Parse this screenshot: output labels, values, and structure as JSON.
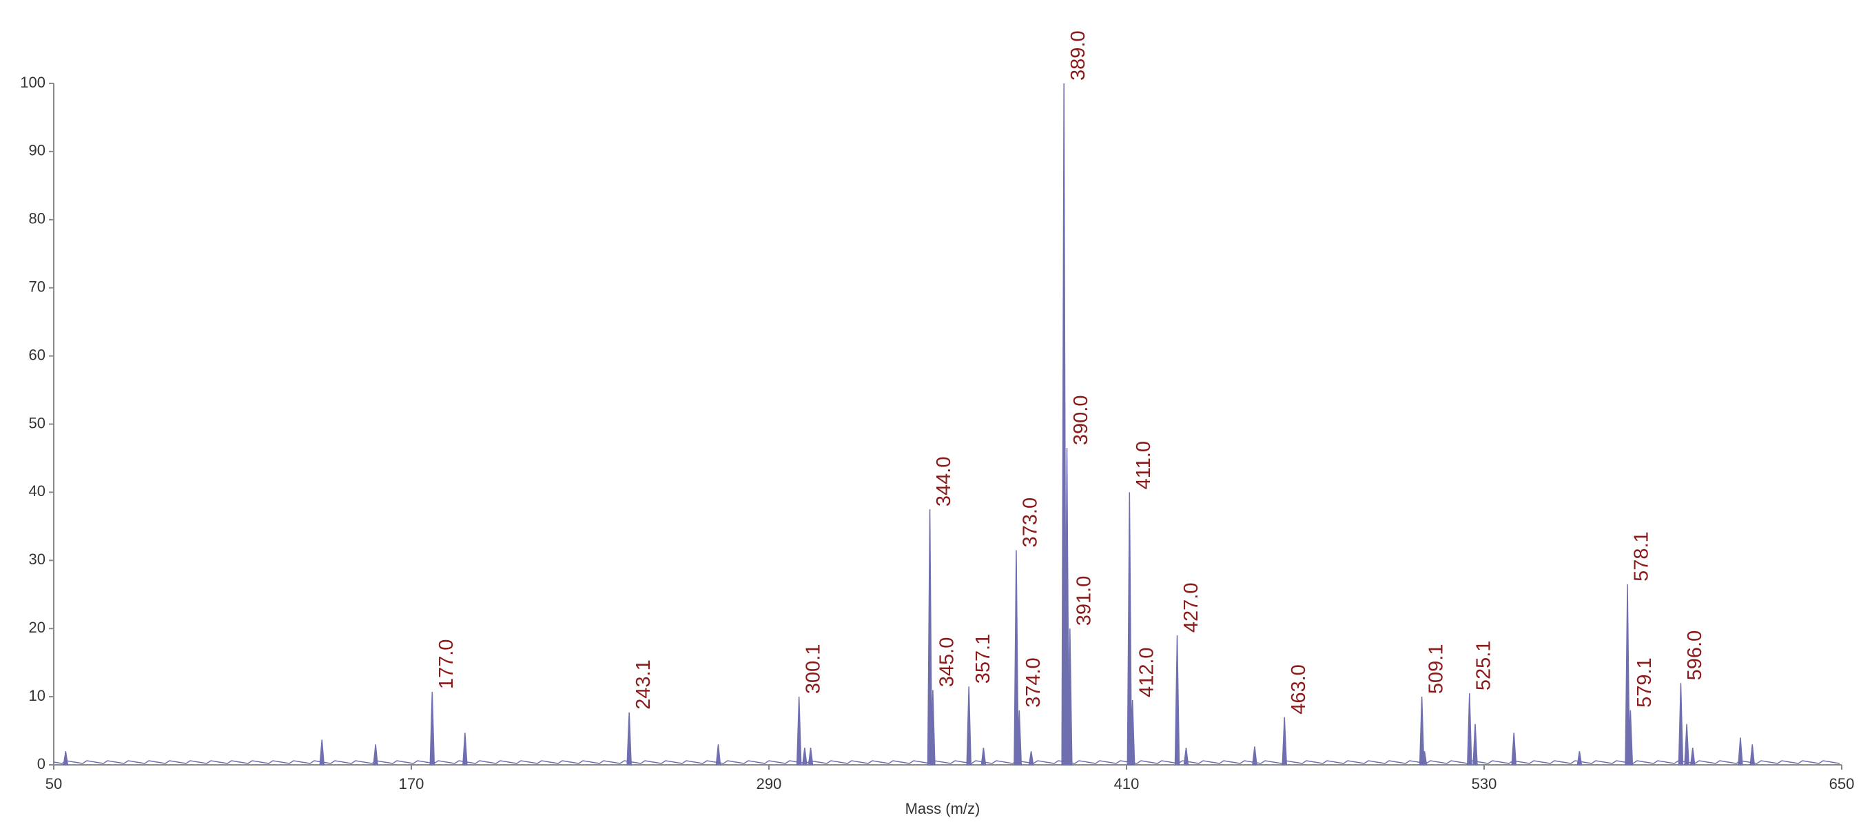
{
  "chart_data": {
    "type": "spectrum",
    "xlabel": "Mass (m/z)",
    "x": [
      54,
      140,
      158,
      177.0,
      188,
      243.1,
      273,
      300.1,
      302,
      304,
      344.0,
      345.0,
      357.1,
      362,
      373.0,
      374.0,
      378,
      389.0,
      390.0,
      391.0,
      411.0,
      412.0,
      427.0,
      430,
      453,
      463.0,
      509.1,
      510,
      525.1,
      527,
      540,
      562,
      578.1,
      579.1,
      596.0,
      598,
      600,
      616,
      620
    ],
    "values": [
      2,
      3.7,
      3,
      10.7,
      4.7,
      7.7,
      3,
      10,
      2.5,
      2.5,
      37.5,
      11,
      11.5,
      2.5,
      31.5,
      8,
      2,
      100,
      46.5,
      20,
      40,
      9.5,
      19,
      2.5,
      2.7,
      7,
      10,
      2,
      10.5,
      6,
      4.7,
      2,
      26.5,
      8,
      12,
      6,
      2.5,
      4,
      3
    ],
    "peak_labels": [
      null,
      null,
      null,
      "177.0",
      null,
      "243.1",
      null,
      "300.1",
      null,
      null,
      "344.0",
      "345.0",
      "357.1",
      null,
      "373.0",
      "374.0",
      null,
      "389.0",
      "390.0",
      "391.0",
      "411.0",
      "412.0",
      "427.0",
      null,
      null,
      "463.0",
      "509.1",
      null,
      "525.1",
      null,
      null,
      null,
      "578.1",
      "579.1",
      "596.0",
      null,
      null,
      null,
      null
    ],
    "color": "#6f6fb0",
    "label_color": "#8b1a1a",
    "xlim": [
      50,
      650
    ],
    "xticks": [
      50,
      170,
      290,
      410,
      530,
      650
    ],
    "ylim": [
      0,
      100
    ],
    "yticks": [
      0,
      10,
      20,
      30,
      40,
      50,
      60,
      70,
      80,
      90,
      100
    ]
  }
}
